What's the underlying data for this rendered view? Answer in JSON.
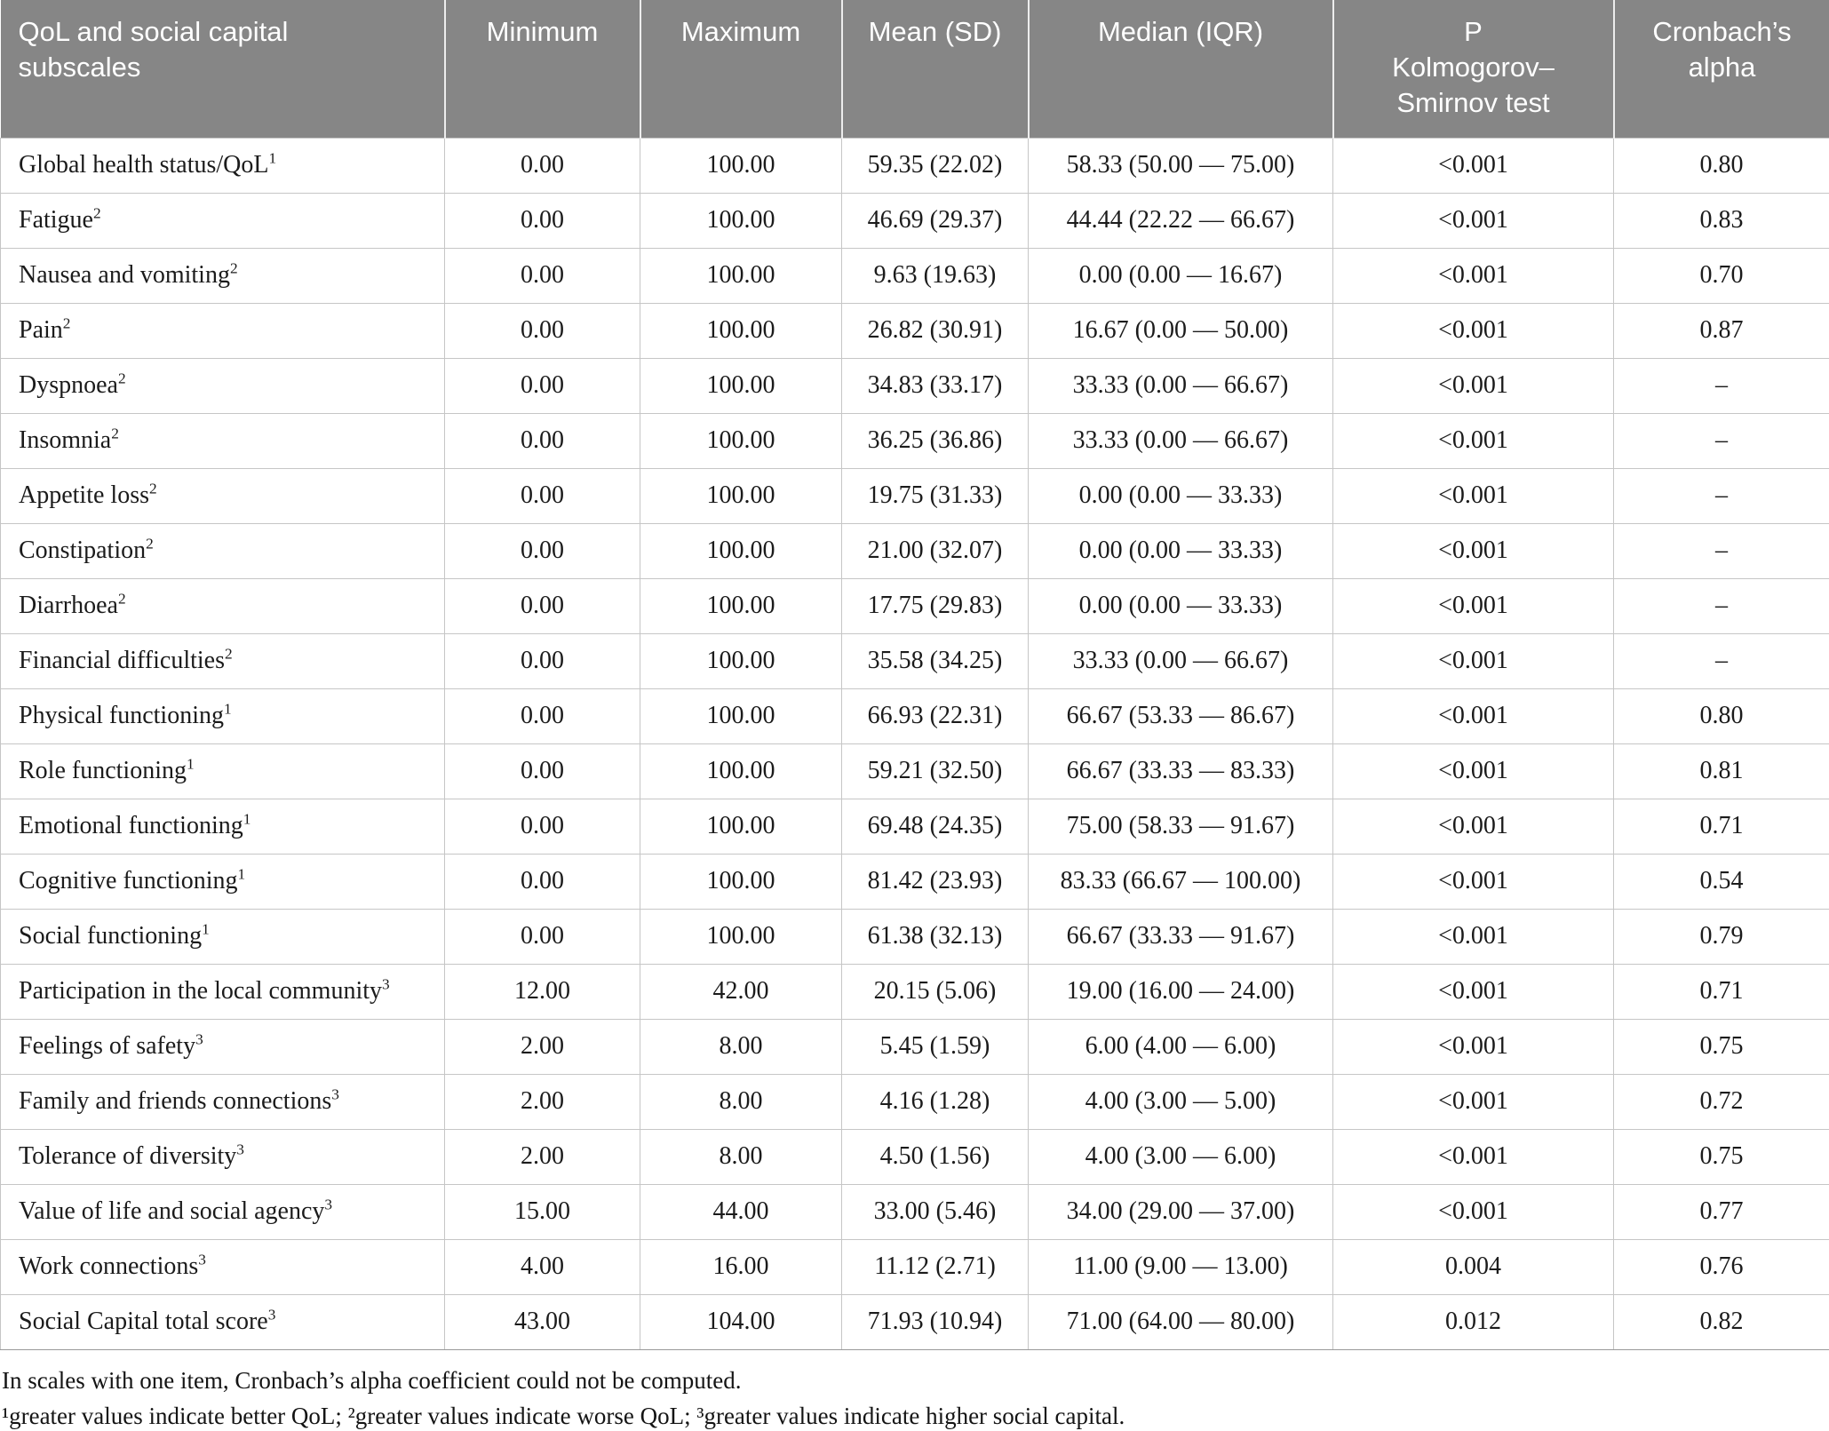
{
  "colors": {
    "header_background": "#868686",
    "header_text": "#ffffff",
    "body_text": "#1b1b1b",
    "grid_line": "#c6c6c6",
    "table_bottom_line": "#9a9a9a"
  },
  "table": {
    "columns": [
      {
        "id": "subscale",
        "label": "QoL and social capital\nsubscales"
      },
      {
        "id": "minimum",
        "label": "Minimum"
      },
      {
        "id": "maximum",
        "label": "Maximum"
      },
      {
        "id": "mean_sd",
        "label": "Mean (SD)"
      },
      {
        "id": "median_iqr",
        "label": "Median (IQR)"
      },
      {
        "id": "p_ks",
        "label": "P\nKolmogorov–\nSmirnov test"
      },
      {
        "id": "alpha",
        "label": "Cronbach’s\nalpha"
      }
    ],
    "rows": [
      {
        "label": "Global health status/QoL",
        "sup": "1",
        "min": "0.00",
        "max": "100.00",
        "mean_sd": "59.35 (22.02)",
        "median_iqr": "58.33 (50.00 — 75.00)",
        "p": "<0.001",
        "alpha": "0.80"
      },
      {
        "label": "Fatigue",
        "sup": "2",
        "min": "0.00",
        "max": "100.00",
        "mean_sd": "46.69 (29.37)",
        "median_iqr": "44.44 (22.22 — 66.67)",
        "p": "<0.001",
        "alpha": "0.83"
      },
      {
        "label": "Nausea and vomiting",
        "sup": "2",
        "min": "0.00",
        "max": "100.00",
        "mean_sd": "9.63 (19.63)",
        "median_iqr": "0.00 (0.00 — 16.67)",
        "p": "<0.001",
        "alpha": "0.70"
      },
      {
        "label": "Pain",
        "sup": "2",
        "min": "0.00",
        "max": "100.00",
        "mean_sd": "26.82 (30.91)",
        "median_iqr": "16.67 (0.00 — 50.00)",
        "p": "<0.001",
        "alpha": "0.87"
      },
      {
        "label": "Dyspnoea",
        "sup": "2",
        "min": "0.00",
        "max": "100.00",
        "mean_sd": "34.83 (33.17)",
        "median_iqr": "33.33 (0.00 — 66.67)",
        "p": "<0.001",
        "alpha": "–"
      },
      {
        "label": "Insomnia",
        "sup": "2",
        "min": "0.00",
        "max": "100.00",
        "mean_sd": "36.25 (36.86)",
        "median_iqr": "33.33 (0.00 — 66.67)",
        "p": "<0.001",
        "alpha": "–"
      },
      {
        "label": "Appetite loss",
        "sup": "2",
        "min": "0.00",
        "max": "100.00",
        "mean_sd": "19.75 (31.33)",
        "median_iqr": "0.00 (0.00 — 33.33)",
        "p": "<0.001",
        "alpha": "–"
      },
      {
        "label": "Constipation",
        "sup": "2",
        "min": "0.00",
        "max": "100.00",
        "mean_sd": "21.00 (32.07)",
        "median_iqr": "0.00 (0.00 — 33.33)",
        "p": "<0.001",
        "alpha": "–"
      },
      {
        "label": "Diarrhoea",
        "sup": "2",
        "min": "0.00",
        "max": "100.00",
        "mean_sd": "17.75 (29.83)",
        "median_iqr": "0.00 (0.00 — 33.33)",
        "p": "<0.001",
        "alpha": "–"
      },
      {
        "label": "Financial difficulties",
        "sup": "2",
        "min": "0.00",
        "max": "100.00",
        "mean_sd": "35.58 (34.25)",
        "median_iqr": "33.33 (0.00 — 66.67)",
        "p": "<0.001",
        "alpha": "–"
      },
      {
        "label": "Physical functioning",
        "sup": "1",
        "min": "0.00",
        "max": "100.00",
        "mean_sd": "66.93 (22.31)",
        "median_iqr": "66.67 (53.33 — 86.67)",
        "p": "<0.001",
        "alpha": "0.80"
      },
      {
        "label": "Role functioning",
        "sup": "1",
        "min": "0.00",
        "max": "100.00",
        "mean_sd": "59.21 (32.50)",
        "median_iqr": "66.67 (33.33 — 83.33)",
        "p": "<0.001",
        "alpha": "0.81"
      },
      {
        "label": "Emotional functioning",
        "sup": "1",
        "min": "0.00",
        "max": "100.00",
        "mean_sd": "69.48 (24.35)",
        "median_iqr": "75.00 (58.33 — 91.67)",
        "p": "<0.001",
        "alpha": "0.71"
      },
      {
        "label": "Cognitive functioning",
        "sup": "1",
        "min": "0.00",
        "max": "100.00",
        "mean_sd": "81.42 (23.93)",
        "median_iqr": "83.33 (66.67 — 100.00)",
        "p": "<0.001",
        "alpha": "0.54"
      },
      {
        "label": "Social functioning",
        "sup": "1",
        "min": "0.00",
        "max": "100.00",
        "mean_sd": "61.38 (32.13)",
        "median_iqr": "66.67 (33.33 — 91.67)",
        "p": "<0.001",
        "alpha": "0.79"
      },
      {
        "label": "Participation in the local community",
        "sup": "3",
        "min": "12.00",
        "max": "42.00",
        "mean_sd": "20.15 (5.06)",
        "median_iqr": "19.00 (16.00 — 24.00)",
        "p": "<0.001",
        "alpha": "0.71"
      },
      {
        "label": "Feelings of safety",
        "sup": "3",
        "min": "2.00",
        "max": "8.00",
        "mean_sd": "5.45 (1.59)",
        "median_iqr": "6.00 (4.00 — 6.00)",
        "p": "<0.001",
        "alpha": "0.75"
      },
      {
        "label": "Family and friends connections",
        "sup": "3",
        "min": "2.00",
        "max": "8.00",
        "mean_sd": "4.16 (1.28)",
        "median_iqr": "4.00 (3.00 — 5.00)",
        "p": "<0.001",
        "alpha": "0.72"
      },
      {
        "label": "Tolerance of diversity",
        "sup": "3",
        "min": "2.00",
        "max": "8.00",
        "mean_sd": "4.50 (1.56)",
        "median_iqr": "4.00 (3.00 — 6.00)",
        "p": "<0.001",
        "alpha": "0.75"
      },
      {
        "label": "Value of life and social agency",
        "sup": "3",
        "min": "15.00",
        "max": "44.00",
        "mean_sd": "33.00 (5.46)",
        "median_iqr": "34.00 (29.00 — 37.00)",
        "p": "<0.001",
        "alpha": "0.77"
      },
      {
        "label": "Work connections",
        "sup": "3",
        "min": "4.00",
        "max": "16.00",
        "mean_sd": "11.12 (2.71)",
        "median_iqr": "11.00 (9.00 — 13.00)",
        "p": "0.004",
        "alpha": "0.76"
      },
      {
        "label": "Social Capital total score",
        "sup": "3",
        "min": "43.00",
        "max": "104.00",
        "mean_sd": "71.93 (10.94)",
        "median_iqr": "71.00 (64.00 — 80.00)",
        "p": "0.012",
        "alpha": "0.82"
      }
    ]
  },
  "footnotes": {
    "line1": "In scales with one item, Cronbach’s alpha coefficient could not be computed.",
    "line2": "¹greater values indicate better QoL; ²greater values indicate worse QoL; ³greater values indicate higher social capital."
  }
}
